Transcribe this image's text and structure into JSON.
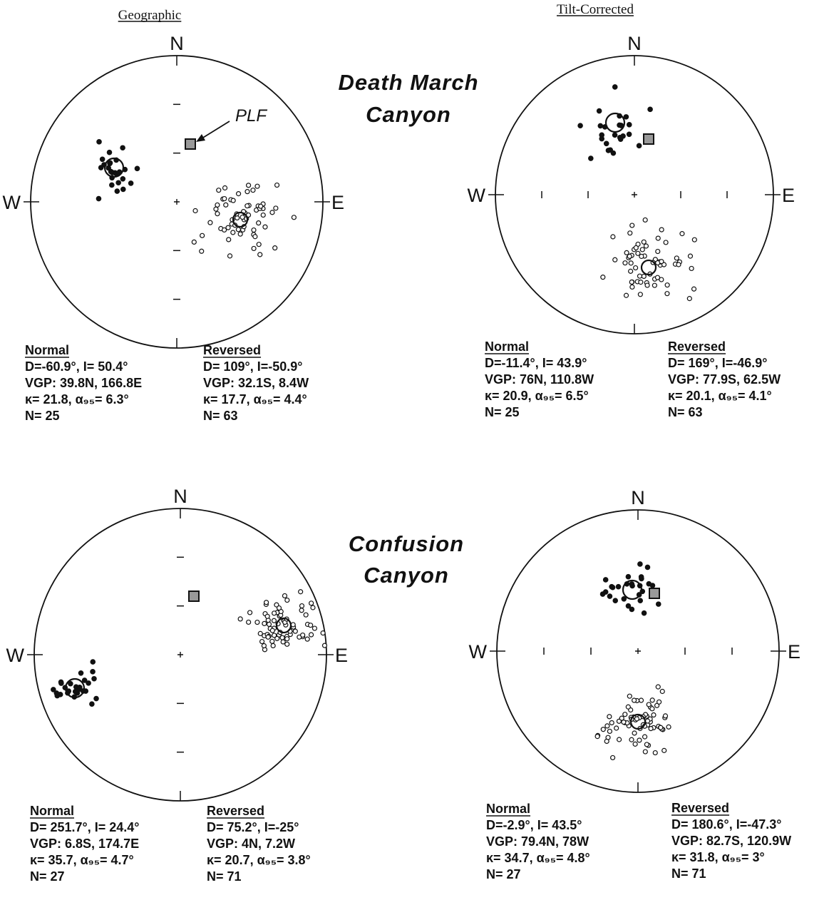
{
  "columns": [
    "Geographic",
    "Tilt-Corrected"
  ],
  "sites": [
    {
      "name_lines": [
        "Death  March",
        "Canyon"
      ],
      "nets": [
        {
          "labels": {
            "n": "N",
            "w": "W",
            "e": "E"
          },
          "annotation": "PLF",
          "stats": [
            {
              "heading": "Normal",
              "lines": [
                "D=-60.9°, I= 50.4°",
                "VGP:  39.8N, 166.8E",
                "κ= 21.8, α₉₅= 6.3°",
                "N= 25"
              ]
            },
            {
              "heading": "Reversed",
              "lines": [
                "D= 109°, I=-50.9°",
                "VGP:  32.1S, 8.4W",
                "κ= 17.7, α₉₅= 4.4°",
                "N= 63"
              ]
            }
          ]
        },
        {
          "labels": {
            "n": "N",
            "w": "W",
            "e": "E"
          },
          "stats": [
            {
              "heading": "Normal",
              "lines": [
                "D=-11.4°, I= 43.9°",
                "VGP:  76N, 110.8W",
                "κ= 20.9, α₉₅= 6.5°",
                "N= 25"
              ]
            },
            {
              "heading": "Reversed",
              "lines": [
                "D= 169°, I=-46.9°",
                "VGP:  77.9S, 62.5W",
                "κ= 20.1, α₉₅= 4.1°",
                "N= 63"
              ]
            }
          ]
        }
      ]
    },
    {
      "name_lines": [
        "Confusion",
        "Canyon"
      ],
      "nets": [
        {
          "labels": {
            "n": "N",
            "w": "W",
            "e": "E"
          },
          "stats": [
            {
              "heading": "Normal",
              "lines": [
                "D= 251.7°, I= 24.4°",
                "VGP:  6.8S, 174.7E",
                "κ= 35.7, α₉₅= 4.7°",
                "N= 27"
              ]
            },
            {
              "heading": "Reversed",
              "lines": [
                "D= 75.2°, I=-25°",
                "VGP:  4N, 7.2W",
                "κ= 20.7, α₉₅= 3.8°",
                "N= 71"
              ]
            }
          ]
        },
        {
          "labels": {
            "n": "N",
            "w": "W",
            "e": "E"
          },
          "stats": [
            {
              "heading": "Normal",
              "lines": [
                "D=-2.9°, I= 43.5°",
                "VGP:  79.4N, 78W",
                "κ= 34.7, α₉₅= 4.8°",
                "N= 27"
              ]
            },
            {
              "heading": "Reversed",
              "lines": [
                "D= 180.6°, I=-47.3°",
                "VGP:  82.7S, 120.9W",
                "κ= 31.8, α₉₅= 3°",
                "N= 71"
              ]
            }
          ]
        }
      ]
    }
  ]
}
